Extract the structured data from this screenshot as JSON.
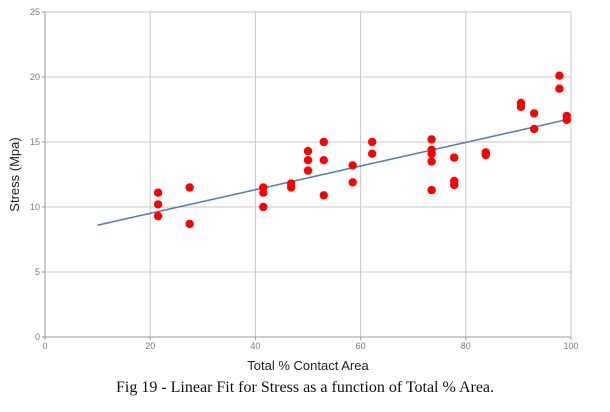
{
  "caption": "Fig 19 - Linear Fit for Stress as a function of Total % Area.",
  "colors": {
    "points": "#ff0000",
    "fit_line": "#5b7fb5",
    "grid": "#c8c8c8",
    "axis": "#9a9a9a"
  },
  "chart_data": {
    "type": "scatter",
    "title": "",
    "xlabel": "Total % Contact Area",
    "ylabel": "Stress (Mpa)",
    "xlim": [
      0,
      100
    ],
    "ylim": [
      0,
      25
    ],
    "xticks": [
      0,
      20,
      40,
      60,
      80,
      100
    ],
    "yticks": [
      0,
      5,
      10,
      15,
      20,
      25
    ],
    "xtick_labels": [
      "0",
      "20",
      "40",
      "60",
      "80",
      "100"
    ],
    "ytick_labels": [
      "0",
      "5",
      "10",
      "15",
      "20",
      "25"
    ],
    "grid": true,
    "points": [
      {
        "x": 21.5,
        "y": 11.1
      },
      {
        "x": 21.5,
        "y": 10.2
      },
      {
        "x": 21.5,
        "y": 9.3
      },
      {
        "x": 27.5,
        "y": 11.5
      },
      {
        "x": 27.5,
        "y": 8.7
      },
      {
        "x": 41.5,
        "y": 11.5
      },
      {
        "x": 41.5,
        "y": 11.1
      },
      {
        "x": 41.5,
        "y": 10.0
      },
      {
        "x": 46.8,
        "y": 11.8
      },
      {
        "x": 46.8,
        "y": 11.5
      },
      {
        "x": 50.0,
        "y": 14.3
      },
      {
        "x": 50.0,
        "y": 13.6
      },
      {
        "x": 50.0,
        "y": 12.8
      },
      {
        "x": 53.0,
        "y": 15.0
      },
      {
        "x": 53.0,
        "y": 13.6
      },
      {
        "x": 53.0,
        "y": 10.9
      },
      {
        "x": 58.5,
        "y": 13.2
      },
      {
        "x": 58.5,
        "y": 11.9
      },
      {
        "x": 62.2,
        "y": 15.0
      },
      {
        "x": 62.2,
        "y": 14.1
      },
      {
        "x": 73.5,
        "y": 15.2
      },
      {
        "x": 73.5,
        "y": 14.4
      },
      {
        "x": 73.5,
        "y": 14.1
      },
      {
        "x": 73.5,
        "y": 13.5
      },
      {
        "x": 73.5,
        "y": 11.3
      },
      {
        "x": 77.8,
        "y": 13.8
      },
      {
        "x": 77.8,
        "y": 12.0
      },
      {
        "x": 77.8,
        "y": 11.7
      },
      {
        "x": 83.8,
        "y": 14.2
      },
      {
        "x": 83.8,
        "y": 14.0
      },
      {
        "x": 90.5,
        "y": 18.0
      },
      {
        "x": 90.5,
        "y": 17.7
      },
      {
        "x": 93.0,
        "y": 17.2
      },
      {
        "x": 93.0,
        "y": 16.0
      },
      {
        "x": 97.8,
        "y": 20.1
      },
      {
        "x": 97.8,
        "y": 19.1
      },
      {
        "x": 99.2,
        "y": 17.0
      },
      {
        "x": 99.2,
        "y": 16.7
      }
    ],
    "fit_line": {
      "x": [
        10,
        99
      ],
      "y": [
        8.6,
        16.7
      ]
    }
  }
}
